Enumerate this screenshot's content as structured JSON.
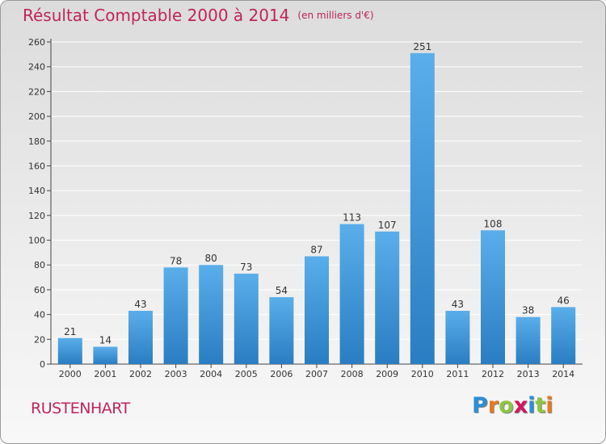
{
  "header": {
    "title": "Résultat Comptable 2000 à 2014",
    "unit": "(en milliers d'€)"
  },
  "footer": {
    "place": "RUSTENHART",
    "logo_letters": [
      {
        "char": "P",
        "color": "#2a8fd6"
      },
      {
        "char": "r",
        "color": "#e8791e"
      },
      {
        "char": "o",
        "color": "#8cc63f"
      },
      {
        "char": "x",
        "color": "#d4145a"
      },
      {
        "char": "i",
        "color": "#2a8fd6"
      },
      {
        "char": "t",
        "color": "#8cc63f"
      },
      {
        "char": "i",
        "color": "#e8791e"
      }
    ]
  },
  "colors": {
    "bar_top": "#5aaeea",
    "bar_bottom": "#2a7dc2",
    "title": "#c0245a",
    "grid": "#ffffff"
  },
  "chart_data": {
    "type": "bar",
    "title": "Résultat Comptable 2000 à 2014",
    "subtitle": "(en milliers d'€)",
    "categories": [
      "2000",
      "2001",
      "2002",
      "2003",
      "2004",
      "2005",
      "2006",
      "2007",
      "2008",
      "2009",
      "2010",
      "2011",
      "2012",
      "2013",
      "2014"
    ],
    "values": [
      21,
      14,
      43,
      78,
      80,
      73,
      54,
      87,
      113,
      107,
      251,
      43,
      108,
      38,
      46
    ],
    "data_labels": [
      "21",
      "14",
      "43",
      "78",
      "80",
      "73",
      "54",
      "87",
      "113",
      "107",
      "251",
      "43",
      "108",
      "38",
      "46"
    ],
    "ylim": [
      0,
      260
    ],
    "yticks": [
      0,
      20,
      40,
      60,
      80,
      100,
      120,
      140,
      160,
      180,
      200,
      220,
      240,
      260
    ],
    "ytick_labels": [
      "0",
      "20",
      "40",
      "60",
      "80",
      "100",
      "120",
      "140",
      "160",
      "180",
      "200",
      "220",
      "240",
      "260"
    ],
    "grid": true,
    "legend": "none",
    "xlabel": "",
    "ylabel": ""
  }
}
